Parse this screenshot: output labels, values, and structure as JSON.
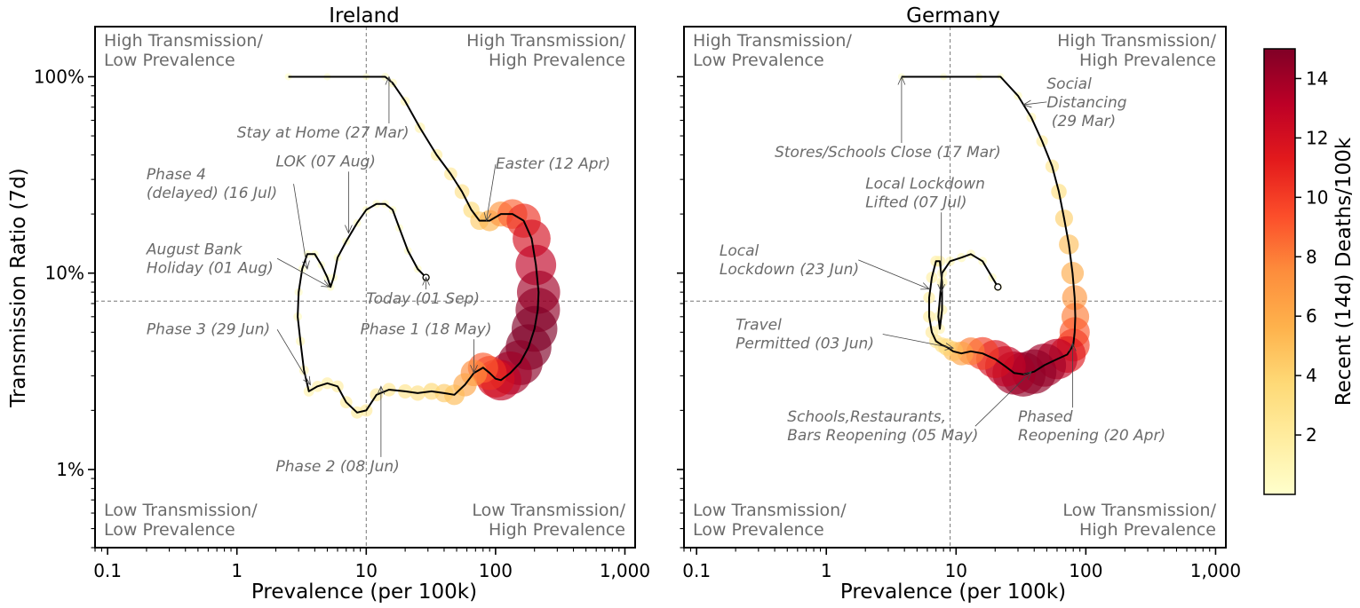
{
  "chart_data": [
    {
      "type": "scatter",
      "title": "Ireland",
      "xlabel": "Prevalence (per 100k)",
      "ylabel": "Transmission Ratio (7d)",
      "xscale": "log",
      "yscale": "log",
      "xlim": [
        0.08,
        1200
      ],
      "ylim": [
        0.004,
        1.8
      ],
      "xticks": [
        {
          "v": 0.1,
          "label": "0.1"
        },
        {
          "v": 1,
          "label": "1"
        },
        {
          "v": 10,
          "label": "10"
        },
        {
          "v": 100,
          "label": "100"
        },
        {
          "v": 1000,
          "label": "1,000"
        }
      ],
      "yticks": [
        {
          "v": 0.01,
          "label": "1%"
        },
        {
          "v": 0.1,
          "label": "10%"
        },
        {
          "v": 1,
          "label": "100%"
        }
      ],
      "ref_x": 10,
      "ref_y": 0.072,
      "quadrants": {
        "top_left": [
          "High Transmission/",
          "Low Prevalence"
        ],
        "top_right": [
          "High Transmission/",
          "High Prevalence"
        ],
        "bottom_left": [
          "Low Transmission/",
          "Low Prevalence"
        ],
        "bottom_right": [
          "Low Transmission/",
          "High Prevalence"
        ]
      },
      "points": [
        [
          2.5,
          1.0,
          0
        ],
        [
          5,
          1.0,
          0
        ],
        [
          10,
          1.0,
          0
        ],
        [
          14,
          1.0,
          0.3
        ],
        [
          16,
          0.93,
          0.6
        ],
        [
          20,
          0.75,
          0.9
        ],
        [
          26,
          0.55,
          1.3
        ],
        [
          35,
          0.4,
          1.8
        ],
        [
          45,
          0.32,
          2.3
        ],
        [
          55,
          0.26,
          3
        ],
        [
          65,
          0.21,
          3.6
        ],
        [
          75,
          0.185,
          4.4
        ],
        [
          90,
          0.185,
          5.5
        ],
        [
          110,
          0.2,
          7
        ],
        [
          135,
          0.2,
          8.8
        ],
        [
          165,
          0.185,
          10.5
        ],
        [
          190,
          0.15,
          12
        ],
        [
          205,
          0.11,
          13
        ],
        [
          215,
          0.08,
          14
        ],
        [
          212,
          0.065,
          14.5
        ],
        [
          200,
          0.052,
          15
        ],
        [
          180,
          0.042,
          15
        ],
        [
          155,
          0.035,
          14.7
        ],
        [
          130,
          0.031,
          14
        ],
        [
          110,
          0.0285,
          13
        ],
        [
          100,
          0.029,
          12
        ],
        [
          90,
          0.031,
          10.5
        ],
        [
          80,
          0.033,
          9
        ],
        [
          68,
          0.031,
          7.5
        ],
        [
          58,
          0.027,
          6.3
        ],
        [
          48,
          0.024,
          5.2
        ],
        [
          40,
          0.0245,
          4.4
        ],
        [
          32,
          0.025,
          3.8
        ],
        [
          25,
          0.0245,
          3.2
        ],
        [
          20,
          0.025,
          2.8
        ],
        [
          15,
          0.0255,
          2.5
        ],
        [
          12,
          0.024,
          2.3
        ],
        [
          10,
          0.02,
          2.1
        ],
        [
          8.5,
          0.0195,
          2
        ],
        [
          7,
          0.022,
          2
        ],
        [
          6,
          0.0265,
          1.9
        ],
        [
          5,
          0.0275,
          1.8
        ],
        [
          4.2,
          0.0265,
          1.6
        ],
        [
          3.6,
          0.025,
          1.3
        ],
        [
          3.3,
          0.032,
          1
        ],
        [
          3.1,
          0.045,
          0.8
        ],
        [
          2.95,
          0.06,
          0.6
        ],
        [
          3.0,
          0.08,
          0.4
        ],
        [
          3.2,
          0.105,
          0.3
        ],
        [
          3.5,
          0.125,
          0.25
        ],
        [
          4.0,
          0.125,
          0.2
        ],
        [
          4.5,
          0.11,
          0.2
        ],
        [
          5.0,
          0.095,
          0.2
        ],
        [
          5.3,
          0.085,
          0.2
        ],
        [
          5.6,
          0.095,
          0.25
        ],
        [
          6,
          0.12,
          0.3
        ],
        [
          7,
          0.145,
          0.3
        ],
        [
          8.5,
          0.18,
          0.3
        ],
        [
          10,
          0.21,
          0.3
        ],
        [
          12,
          0.225,
          0.3
        ],
        [
          14,
          0.225,
          0.3
        ],
        [
          16,
          0.21,
          0.3
        ],
        [
          18,
          0.17,
          0.3
        ],
        [
          21,
          0.13,
          0.3
        ],
        [
          25,
          0.105,
          0.3
        ],
        [
          29,
          0.095,
          0.3
        ]
      ],
      "colorbar": {
        "label": "Recent (14d) Deaths/100k",
        "min": 0,
        "max": 15,
        "ticks": [
          2,
          4,
          6,
          8,
          10,
          12,
          14
        ]
      },
      "annotations": [
        {
          "lines": [
            "Stay at Home (27 Mar)"
          ],
          "text_x": 1.0,
          "text_y": 0.49,
          "arrow_x": 15,
          "arrow_y": 1.0
        },
        {
          "lines": [
            "Easter (12 Apr)"
          ],
          "text_x": 100,
          "text_y": 0.34,
          "arrow_x": 85,
          "arrow_y": 0.185
        },
        {
          "lines": [
            "Phase 4",
            "(delayed) (16 Jul)"
          ],
          "text_x": 0.2,
          "text_y": 0.3,
          "arrow_x": 3.5,
          "arrow_y": 0.105
        },
        {
          "lines": [
            "LOK (07 Aug)"
          ],
          "text_x": 2.0,
          "text_y": 0.35,
          "arrow_x": 7.3,
          "arrow_y": 0.16
        },
        {
          "lines": [
            "August Bank",
            "Holiday (01 Aug)"
          ],
          "text_x": 0.2,
          "text_y": 0.125,
          "arrow_x": 5.2,
          "arrow_y": 0.085
        },
        {
          "lines": [
            "Today (01 Sep)"
          ],
          "text_x": 10,
          "text_y": 0.07,
          "arrow_x": 29,
          "arrow_y": 0.095
        },
        {
          "lines": [
            "Phase 3 (29 Jun)"
          ],
          "text_x": 0.2,
          "text_y": 0.049,
          "arrow_x": 3.7,
          "arrow_y": 0.027
        },
        {
          "lines": [
            "Phase 1 (18 May)"
          ],
          "text_x": 9,
          "text_y": 0.049,
          "arrow_x": 68,
          "arrow_y": 0.031
        },
        {
          "lines": [
            "Phase 2 (08 Jun)"
          ],
          "text_x": 2.0,
          "text_y": 0.0098,
          "arrow_x": 13,
          "arrow_y": 0.0265
        }
      ],
      "today": [
        29,
        0.095
      ]
    },
    {
      "type": "scatter",
      "title": "Germany",
      "xlabel": "Prevalence (per 100k)",
      "ylabel": "",
      "xscale": "log",
      "yscale": "log",
      "xlim": [
        0.08,
        1200
      ],
      "ylim": [
        0.004,
        1.8
      ],
      "xticks": [
        {
          "v": 0.1,
          "label": "0.1"
        },
        {
          "v": 1,
          "label": "1"
        },
        {
          "v": 10,
          "label": "10"
        },
        {
          "v": 100,
          "label": "100"
        },
        {
          "v": 1000,
          "label": "1,000"
        }
      ],
      "yticks": [],
      "ref_x": 9,
      "ref_y": 0.072,
      "quadrants": {
        "top_left": [
          "High Transmission/",
          "Low Prevalence"
        ],
        "top_right": [
          "High Transmission/",
          "High Prevalence"
        ],
        "bottom_left": [
          "Low Transmission/",
          "Low Prevalence"
        ],
        "bottom_right": [
          "Low Transmission/",
          "High Prevalence"
        ]
      },
      "points": [
        [
          3.8,
          1.0,
          0
        ],
        [
          8,
          1.0,
          0
        ],
        [
          15,
          1.0,
          0
        ],
        [
          22,
          1.0,
          0
        ],
        [
          30,
          0.8,
          0.5
        ],
        [
          38,
          0.62,
          1
        ],
        [
          46,
          0.47,
          1.8
        ],
        [
          55,
          0.35,
          2.5
        ],
        [
          62,
          0.26,
          3.3
        ],
        [
          68,
          0.19,
          4.2
        ],
        [
          74,
          0.14,
          5
        ],
        [
          79,
          0.1,
          6
        ],
        [
          82,
          0.075,
          7
        ],
        [
          83,
          0.06,
          8
        ],
        [
          82,
          0.05,
          9
        ],
        [
          80,
          0.043,
          10
        ],
        [
          72,
          0.0385,
          11.5
        ],
        [
          60,
          0.0365,
          13
        ],
        [
          48,
          0.034,
          14
        ],
        [
          40,
          0.0315,
          14.5
        ],
        [
          33,
          0.0305,
          14.5
        ],
        [
          28,
          0.031,
          14
        ],
        [
          24,
          0.0335,
          13
        ],
        [
          20,
          0.0365,
          12
        ],
        [
          16,
          0.039,
          10
        ],
        [
          13,
          0.04,
          8
        ],
        [
          11,
          0.039,
          6.5
        ],
        [
          9.5,
          0.04,
          5
        ],
        [
          8.5,
          0.042,
          4
        ],
        [
          7.8,
          0.043,
          3.2
        ],
        [
          7,
          0.045,
          2.6
        ],
        [
          6.5,
          0.05,
          2.2
        ],
        [
          6.2,
          0.06,
          2
        ],
        [
          6.2,
          0.075,
          1.8
        ],
        [
          6.5,
          0.095,
          1.7
        ],
        [
          7,
          0.115,
          1.6
        ],
        [
          7.5,
          0.115,
          1.5
        ],
        [
          7.8,
          0.09,
          1.4
        ],
        [
          7.8,
          0.065,
          1.3
        ],
        [
          7.5,
          0.052,
          1.2
        ],
        [
          7.3,
          0.06,
          1.1
        ],
        [
          7.8,
          0.1,
          1
        ],
        [
          9,
          0.115,
          0.9
        ],
        [
          11,
          0.12,
          0.8
        ],
        [
          13,
          0.125,
          0.7
        ],
        [
          16,
          0.115,
          0.6
        ],
        [
          19,
          0.095,
          0.5
        ],
        [
          21,
          0.085,
          0.5
        ]
      ],
      "annotations": [
        {
          "lines": [
            "Stores/Schools Close (17 Mar)"
          ],
          "text_x": 0.4,
          "text_y": 0.39,
          "arrow_x": 3.8,
          "arrow_y": 1.0
        },
        {
          "lines": [
            "Social",
            "Distancing",
            " (29 Mar)"
          ],
          "text_x": 50,
          "text_y": 0.87,
          "arrow_x": 33,
          "arrow_y": 0.72
        },
        {
          "lines": [
            "Local Lockdown",
            "Lifted (07 Jul)"
          ],
          "text_x": 2.0,
          "text_y": 0.27,
          "arrow_x": 7.7,
          "arrow_y": 0.08
        },
        {
          "lines": [
            "Local",
            "Lockdown (23 Jun)"
          ],
          "text_x": 0.15,
          "text_y": 0.123,
          "arrow_x": 6.2,
          "arrow_y": 0.083
        },
        {
          "lines": [
            "Travel",
            "Permitted (03 Jun)"
          ],
          "text_x": 0.2,
          "text_y": 0.0515,
          "arrow_x": 9.5,
          "arrow_y": 0.0415
        },
        {
          "lines": [
            "Schools,Restaurants,",
            "Bars Reopening (05 May)"
          ],
          "text_x": 0.5,
          "text_y": 0.0175,
          "arrow_x": 38,
          "arrow_y": 0.0315
        },
        {
          "lines": [
            "Phased",
            "Reopening (20 Apr)"
          ],
          "text_x": 30,
          "text_y": 0.0175,
          "arrow_x": 79,
          "arrow_y": 0.044
        }
      ],
      "today": [
        21,
        0.085
      ]
    }
  ]
}
